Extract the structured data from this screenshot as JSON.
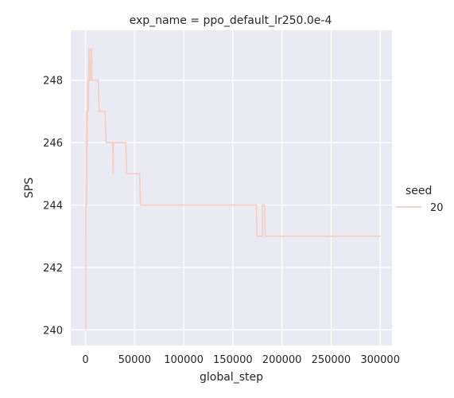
{
  "chart_data": {
    "type": "line",
    "title": "exp_name = ppo_default_lr250.0e-4",
    "xlabel": "global_step",
    "ylabel": "SPS",
    "xlim": [
      -15000,
      312000
    ],
    "ylim": [
      239.5,
      249.6
    ],
    "xticks": [
      0,
      50000,
      100000,
      150000,
      200000,
      250000,
      300000
    ],
    "xtick_labels": [
      "0",
      "50000",
      "100000",
      "150000",
      "200000",
      "250000",
      "300000"
    ],
    "yticks": [
      240,
      242,
      244,
      246,
      248
    ],
    "ytick_labels": [
      "240",
      "242",
      "244",
      "246",
      "248"
    ],
    "grid": true,
    "legend": {
      "title": "seed",
      "position": "right",
      "entries": [
        "20"
      ]
    },
    "colors": {
      "background": "#eaeaf2",
      "grid": "#ffffff",
      "line": "#f3cfc6"
    },
    "series": [
      {
        "name": "20",
        "x": [
          0,
          250,
          300,
          500,
          800,
          1000,
          1200,
          1300,
          1500,
          1800,
          2200,
          2600,
          2800,
          3000,
          3500,
          4000,
          4500,
          5000,
          6000,
          6200,
          6500,
          7000,
          13000,
          14000,
          20000,
          21000,
          27000,
          27500,
          28200,
          28500,
          41000,
          42000,
          55000,
          56000,
          174000,
          174500,
          180000,
          180200,
          181000,
          182000,
          182300,
          183000,
          183300,
          300000
        ],
        "y": [
          240,
          240,
          244,
          244,
          247,
          247,
          244,
          244,
          246,
          246,
          248,
          248,
          247,
          247,
          249,
          249,
          248,
          248,
          249,
          249,
          248,
          248,
          248,
          247,
          247,
          246,
          246,
          246,
          245,
          246,
          246,
          245,
          245,
          244,
          244,
          243,
          243,
          244,
          244,
          244,
          244,
          243,
          243,
          243
        ]
      }
    ]
  }
}
